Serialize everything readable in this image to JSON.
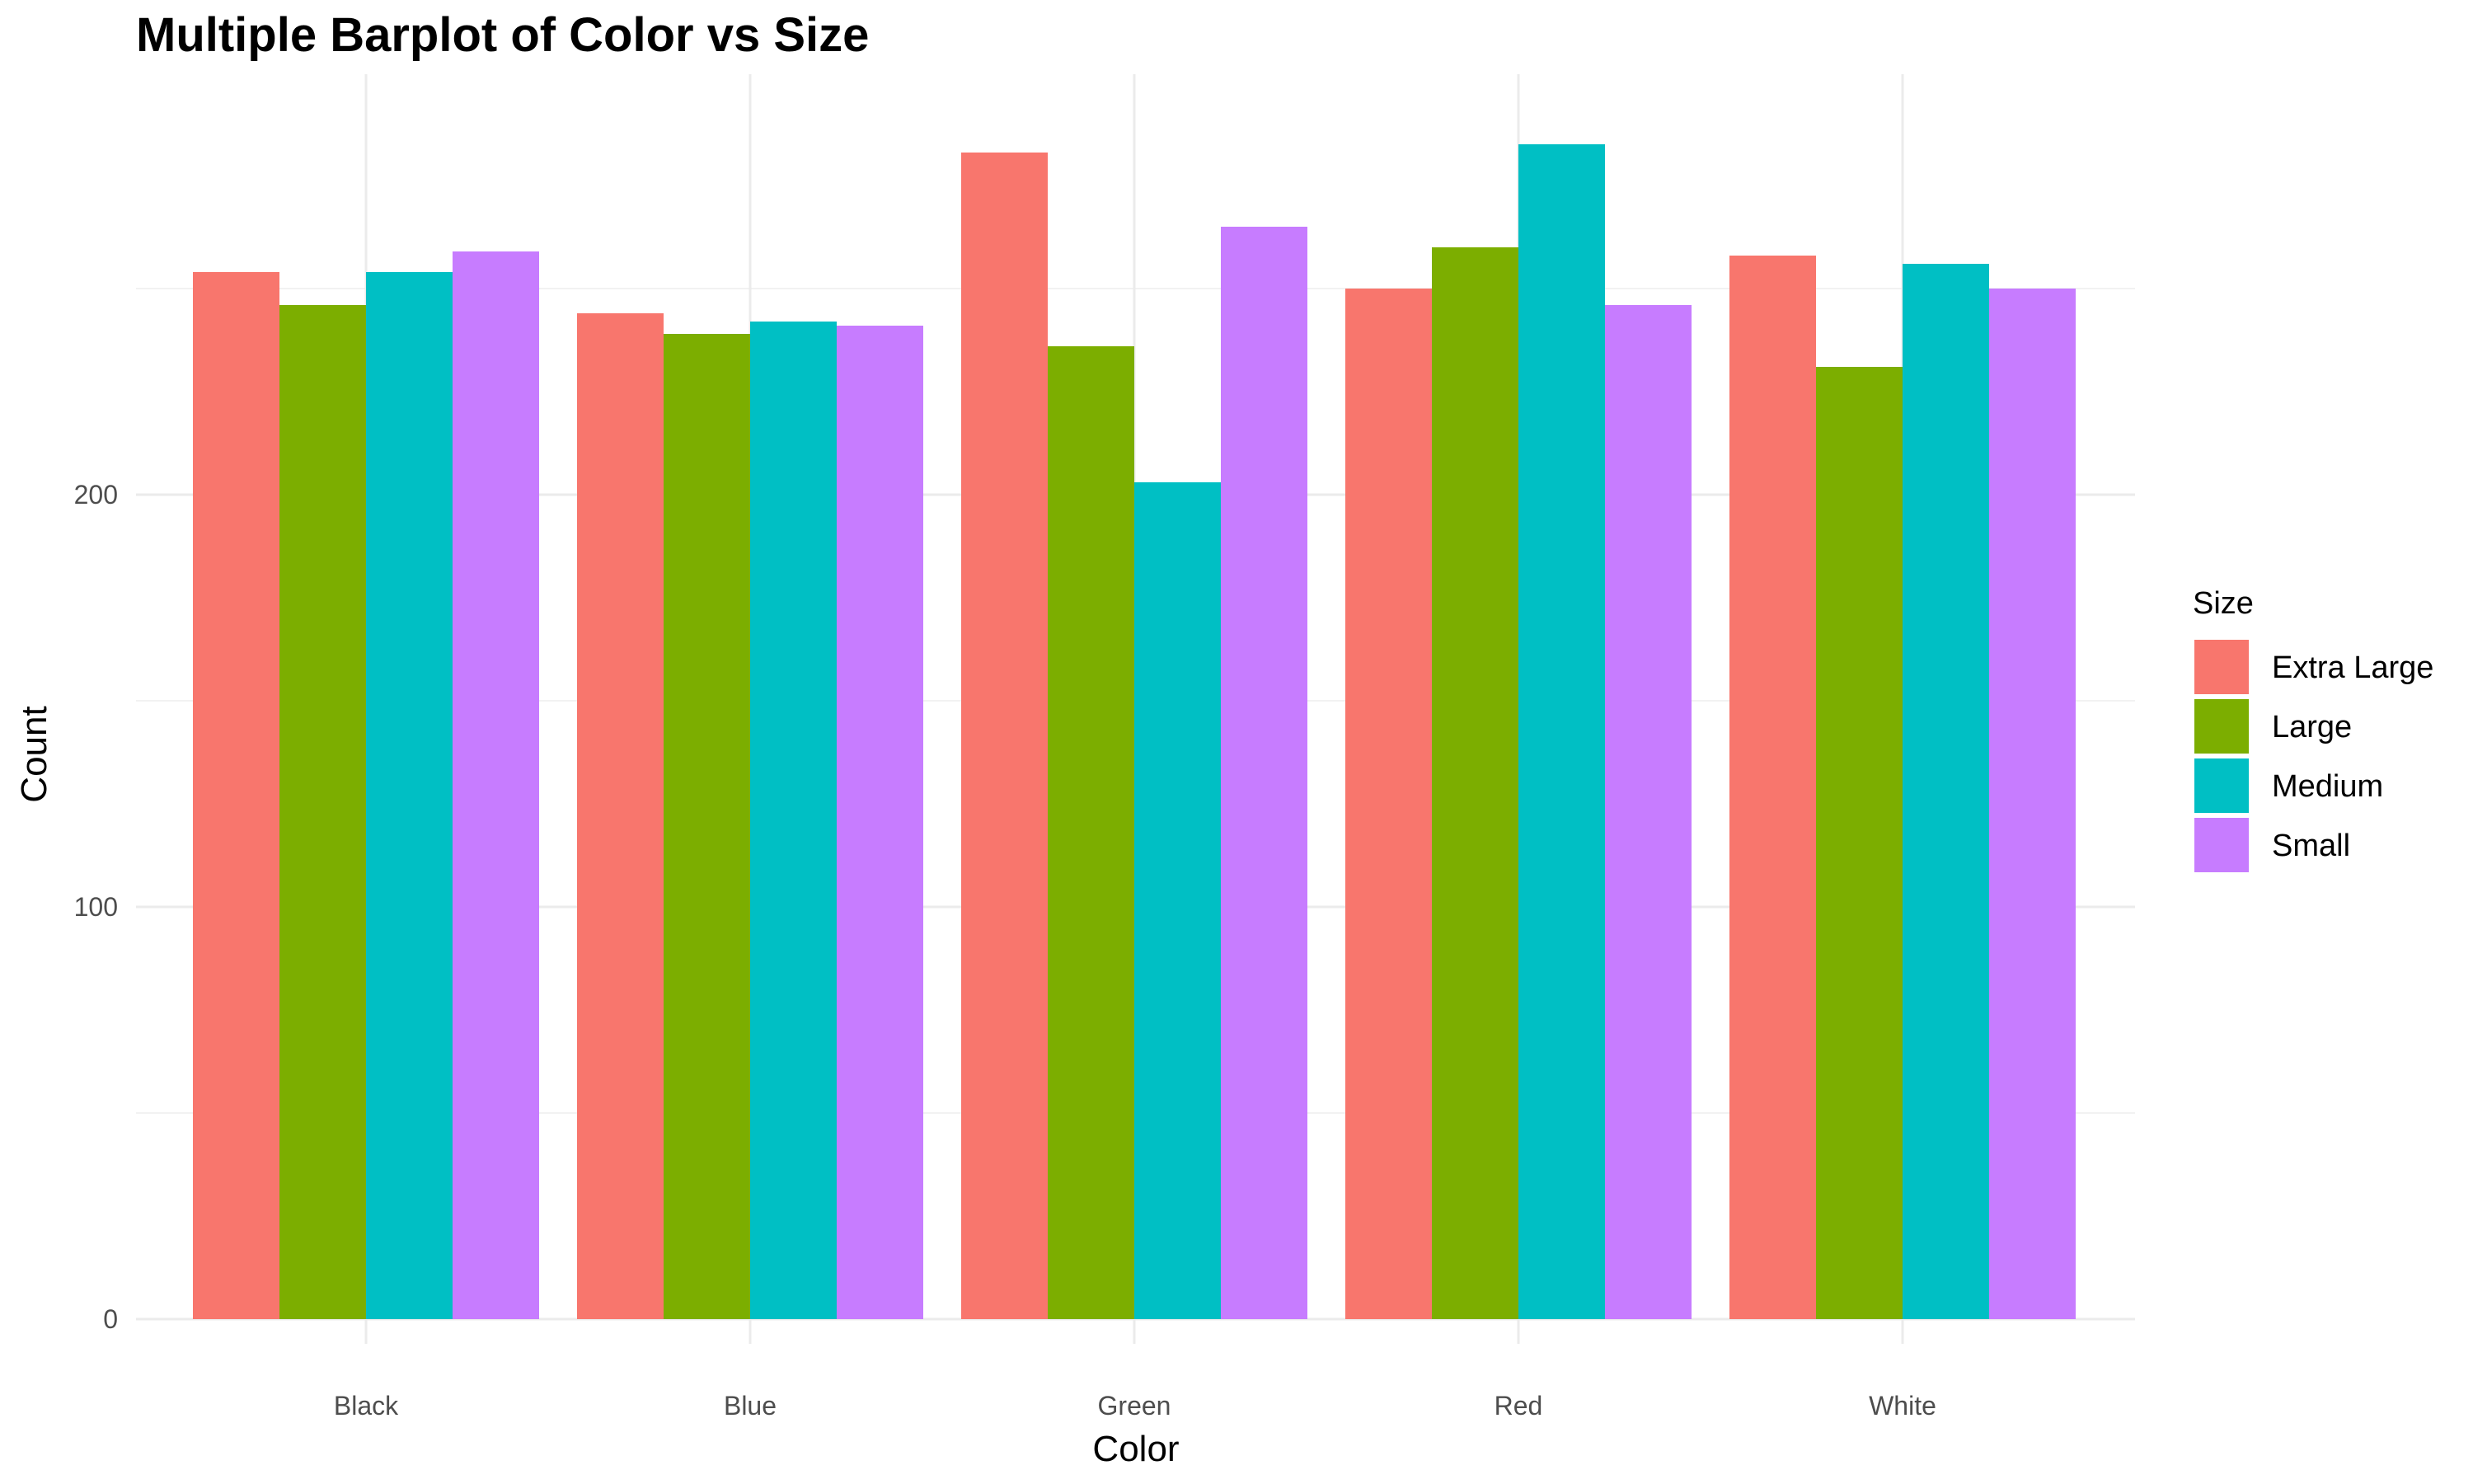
{
  "chart_data": {
    "type": "bar",
    "title": "Multiple Barplot of Color vs Size",
    "xlabel": "Color",
    "ylabel": "Count",
    "categories": [
      "Black",
      "Blue",
      "Green",
      "Red",
      "White"
    ],
    "series": [
      {
        "name": "Extra Large",
        "color": "#F8766D",
        "values": [
          254,
          244,
          283,
          250,
          258
        ]
      },
      {
        "name": "Large",
        "color": "#7CAE00",
        "values": [
          246,
          239,
          236,
          260,
          231
        ]
      },
      {
        "name": "Medium",
        "color": "#00BFC4",
        "values": [
          254,
          242,
          203,
          285,
          256
        ]
      },
      {
        "name": "Small",
        "color": "#C77CFF",
        "values": [
          259,
          241,
          265,
          246,
          250
        ]
      }
    ],
    "ylim": [
      0,
      300
    ],
    "yticks": [
      0,
      100,
      200
    ],
    "grid": true,
    "legend": {
      "title": "Size",
      "position": "right"
    }
  }
}
